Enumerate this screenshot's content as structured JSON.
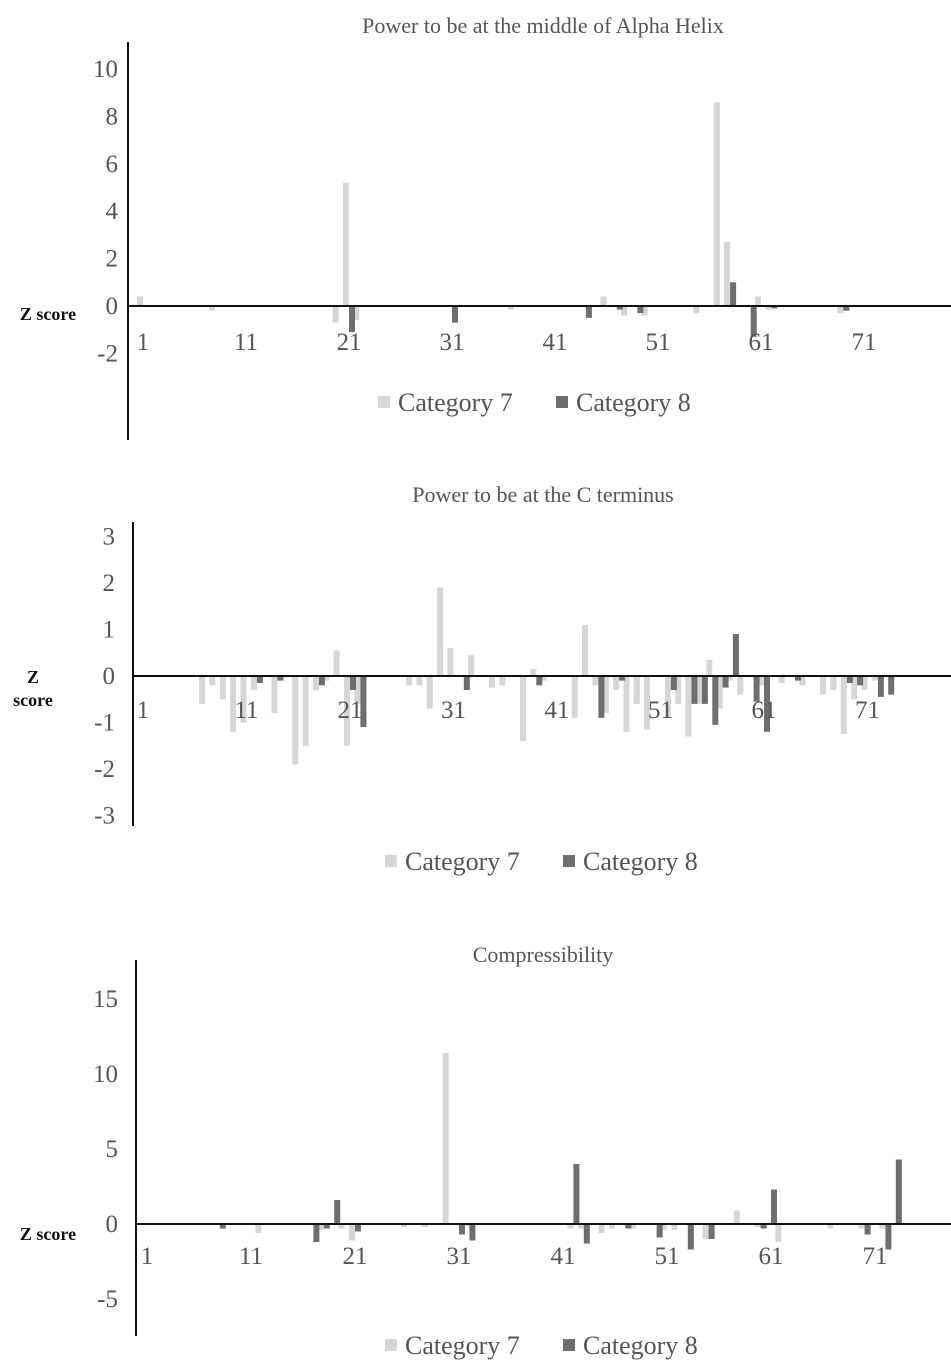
{
  "colors": {
    "category7": "#d6d6d6",
    "category8": "#6e6e6e"
  },
  "chart_data": [
    {
      "type": "bar",
      "title": "Power to be at the middle of Alpha Helix",
      "ylabel": "Z score",
      "ylabel_lines": [
        "Z score"
      ],
      "ylim": [
        -2,
        10
      ],
      "yticks": [
        10,
        8,
        6,
        4,
        2,
        0,
        -2
      ],
      "xticks": [
        1,
        11,
        21,
        31,
        41,
        51,
        61,
        71
      ],
      "legend": [
        "Category 7",
        "Category 8"
      ],
      "legend_position": "bottom",
      "series": [
        {
          "name": "Category 7",
          "x": [
            1,
            8,
            20,
            21,
            22,
            37,
            46,
            48,
            50,
            55,
            57,
            58,
            61,
            62,
            69
          ],
          "values": [
            0.4,
            -0.2,
            -0.7,
            5.2,
            -0.6,
            -0.15,
            0.4,
            -0.4,
            -0.4,
            -0.3,
            8.6,
            2.7,
            0.4,
            -0.15,
            -0.3
          ]
        },
        {
          "name": "Category 8",
          "x": [
            21,
            31,
            44,
            47,
            49,
            58,
            60,
            62,
            69
          ],
          "values": [
            -1.1,
            -0.7,
            -0.5,
            -0.15,
            -0.3,
            1.0,
            -1.3,
            -0.1,
            -0.2
          ]
        }
      ]
    },
    {
      "type": "bar",
      "title": "Power to be at the C terminus",
      "ylabel": "Z score",
      "ylabel_lines": [
        "Z",
        "score"
      ],
      "ylim": [
        -3,
        3
      ],
      "yticks": [
        3,
        2,
        1,
        0,
        -1,
        -2,
        -3
      ],
      "xticks": [
        1,
        11,
        21,
        31,
        41,
        51,
        61,
        71
      ],
      "legend": [
        "Category 7",
        "Category 8"
      ],
      "legend_position": "bottom",
      "series": [
        {
          "name": "Category 7",
          "x": [
            7,
            8,
            9,
            10,
            11,
            12,
            14,
            16,
            17,
            18,
            19,
            20,
            21,
            22,
            27,
            28,
            29,
            30,
            31,
            33,
            35,
            36,
            38,
            39,
            40,
            43,
            44,
            45,
            46,
            47,
            48,
            49,
            50,
            52,
            53,
            54,
            55,
            56,
            57,
            58,
            59,
            61,
            63,
            65,
            67,
            68,
            69,
            70,
            71,
            72
          ],
          "values": [
            -0.6,
            -0.2,
            -0.5,
            -1.2,
            -1.0,
            -0.3,
            -0.8,
            -1.9,
            -1.5,
            -0.3,
            -0.1,
            0.55,
            -1.5,
            -0.6,
            -0.2,
            -0.2,
            -0.7,
            1.9,
            0.6,
            0.45,
            -0.25,
            -0.2,
            -1.4,
            0.15,
            -0.1,
            -0.9,
            1.1,
            -0.2,
            -0.8,
            -0.3,
            -1.2,
            -0.6,
            -1.15,
            -0.9,
            -0.6,
            -1.3,
            -0.6,
            0.35,
            -0.7,
            -0.1,
            -0.4,
            -0.2,
            -0.15,
            -0.2,
            -0.4,
            -0.3,
            -1.25,
            -0.5,
            -0.3,
            -0.1
          ]
        },
        {
          "name": "Category 8",
          "x": [
            12,
            14,
            18,
            21,
            22,
            32,
            39,
            45,
            47,
            52,
            54,
            55,
            56,
            57,
            58,
            60,
            61,
            64,
            69,
            70,
            72,
            73
          ],
          "values": [
            -0.15,
            -0.1,
            -0.2,
            -0.3,
            -1.1,
            -0.3,
            -0.2,
            -0.9,
            -0.1,
            -0.3,
            -0.6,
            -0.6,
            -1.05,
            -0.25,
            0.9,
            -0.55,
            -1.2,
            -0.1,
            -0.15,
            -0.2,
            -0.45,
            -0.4
          ]
        }
      ]
    },
    {
      "type": "bar",
      "title": "Compressibility",
      "ylabel": "Z score",
      "ylabel_lines": [
        "Z score"
      ],
      "ylim": [
        -7,
        17
      ],
      "yticks": [
        15,
        10,
        5,
        0,
        -5
      ],
      "xticks": [
        1,
        11,
        21,
        31,
        41,
        51,
        61,
        71
      ],
      "legend": [
        "Category 7",
        "Category 8"
      ],
      "legend_position": "bottom",
      "series": [
        {
          "name": "Category 7",
          "x": [
            12,
            18,
            20,
            21,
            26,
            28,
            30,
            32,
            42,
            43,
            45,
            46,
            48,
            51,
            52,
            55,
            58,
            60,
            62,
            67,
            70,
            72
          ],
          "values": [
            -0.6,
            -0.4,
            -0.3,
            -1.1,
            -0.2,
            -0.2,
            11.4,
            -0.1,
            -0.3,
            -0.3,
            -0.6,
            -0.3,
            -0.3,
            -0.4,
            -0.4,
            -1.0,
            0.9,
            -0.2,
            -1.2,
            -0.3,
            -0.3,
            -0.3
          ]
        },
        {
          "name": "Category 8",
          "x": [
            8,
            17,
            18,
            19,
            21,
            31,
            32,
            42,
            43,
            47,
            50,
            53,
            55,
            60,
            61,
            70,
            72,
            73
          ],
          "values": [
            -0.3,
            -1.2,
            -0.3,
            1.6,
            -0.5,
            -0.7,
            -1.1,
            4.0,
            -1.3,
            -0.3,
            -0.9,
            -1.7,
            -1.0,
            -0.3,
            2.3,
            -0.7,
            -1.7,
            4.3
          ]
        }
      ]
    }
  ]
}
